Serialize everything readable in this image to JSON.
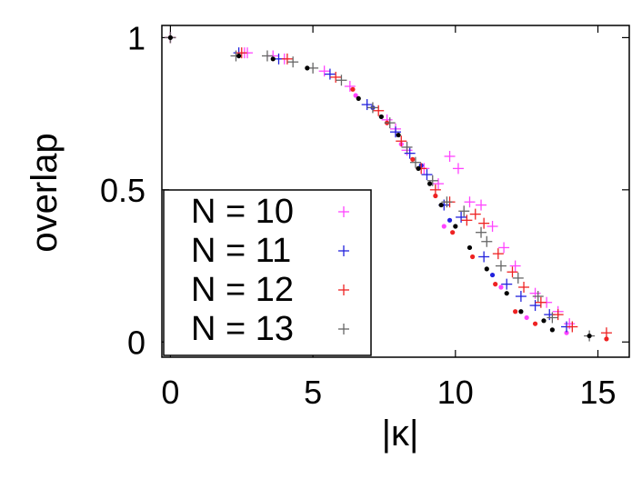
{
  "chart_data": {
    "type": "scatter",
    "xlabel": "|κ|",
    "ylabel": "overlap",
    "xlim": [
      -0.3,
      16.1
    ],
    "ylim": [
      -0.05,
      1.04
    ],
    "xticks": [
      "0",
      "5",
      "10",
      "15"
    ],
    "yticks": [
      "0",
      "0.5",
      "1"
    ],
    "grid": false,
    "legend": {
      "placement": "bottom-left",
      "entries": [
        "N = 10",
        "N = 11",
        "N = 12",
        "N = 13"
      ]
    },
    "colors": {
      "N10": "#ff44ff",
      "N11": "#2222dd",
      "N12": "#ee2222",
      "N13": "#000000",
      "N13_cross": "#666666"
    },
    "series": [
      {
        "name": "N = 10",
        "crosses": [
          [
            0,
            1.0
          ],
          [
            2.6,
            0.95
          ],
          [
            2.7,
            0.95
          ],
          [
            3.6,
            0.94
          ],
          [
            4.0,
            0.93
          ],
          [
            5.4,
            0.89
          ],
          [
            6.3,
            0.84
          ],
          [
            7.6,
            0.73
          ],
          [
            7.9,
            0.7
          ],
          [
            8.3,
            0.63
          ],
          [
            8.9,
            0.57
          ],
          [
            9.4,
            0.52
          ],
          [
            9.8,
            0.61
          ],
          [
            10.1,
            0.57
          ],
          [
            10.5,
            0.46
          ],
          [
            10.9,
            0.45
          ],
          [
            11.3,
            0.38
          ],
          [
            11.7,
            0.31
          ],
          [
            12.1,
            0.25
          ],
          [
            12.8,
            0.16
          ],
          [
            13.2,
            0.13
          ],
          [
            13.6,
            0.1
          ],
          [
            14.0,
            0.06
          ]
        ],
        "dots": [
          [
            6.5,
            0.81
          ],
          [
            8.1,
            0.65
          ],
          [
            9.6,
            0.38
          ],
          [
            11.6,
            0.18
          ],
          [
            12.5,
            0.08
          ],
          [
            13.9,
            0.03
          ]
        ]
      },
      {
        "name": "N = 11",
        "crosses": [
          [
            0,
            1.0
          ],
          [
            2.4,
            0.95
          ],
          [
            3.8,
            0.93
          ],
          [
            5.6,
            0.88
          ],
          [
            6.9,
            0.78
          ],
          [
            7.9,
            0.69
          ],
          [
            8.4,
            0.62
          ],
          [
            9.0,
            0.55
          ],
          [
            9.6,
            0.45
          ],
          [
            10.2,
            0.41
          ],
          [
            11.0,
            0.28
          ],
          [
            11.8,
            0.19
          ],
          [
            12.3,
            0.15
          ],
          [
            12.8,
            0.12
          ],
          [
            13.3,
            0.09
          ],
          [
            13.9,
            0.05
          ]
        ],
        "dots": [
          [
            7.1,
            0.77
          ],
          [
            8.8,
            0.58
          ],
          [
            9.8,
            0.4
          ],
          [
            11.3,
            0.22
          ]
        ]
      },
      {
        "name": "N = 12",
        "crosses": [
          [
            0,
            1.0
          ],
          [
            2.5,
            0.95
          ],
          [
            4.1,
            0.93
          ],
          [
            5.8,
            0.87
          ],
          [
            7.3,
            0.76
          ],
          [
            8.1,
            0.66
          ],
          [
            8.8,
            0.57
          ],
          [
            9.3,
            0.5
          ],
          [
            9.8,
            0.46
          ],
          [
            10.4,
            0.4
          ],
          [
            10.7,
            0.42
          ],
          [
            11.0,
            0.39
          ],
          [
            11.5,
            0.29
          ],
          [
            12.0,
            0.23
          ],
          [
            12.4,
            0.18
          ],
          [
            13.0,
            0.13
          ],
          [
            13.6,
            0.09
          ],
          [
            14.1,
            0.05
          ],
          [
            15.3,
            0.03
          ]
        ],
        "dots": [
          [
            6.4,
            0.83
          ],
          [
            7.6,
            0.72
          ],
          [
            8.5,
            0.6
          ],
          [
            9.3,
            0.48
          ],
          [
            9.9,
            0.36
          ],
          [
            10.6,
            0.28
          ],
          [
            11.4,
            0.19
          ],
          [
            12.1,
            0.1
          ],
          [
            12.8,
            0.06
          ],
          [
            15.3,
            0.01
          ]
        ]
      },
      {
        "name": "N = 13",
        "crosses": [
          [
            0,
            1.0
          ],
          [
            2.3,
            0.94
          ],
          [
            3.4,
            0.94
          ],
          [
            4.3,
            0.92
          ],
          [
            5.0,
            0.9
          ],
          [
            6.0,
            0.86
          ],
          [
            7.1,
            0.77
          ],
          [
            7.7,
            0.72
          ],
          [
            8.3,
            0.64
          ],
          [
            8.6,
            0.59
          ],
          [
            9.2,
            0.53
          ],
          [
            9.7,
            0.46
          ],
          [
            10.3,
            0.43
          ],
          [
            10.9,
            0.36
          ],
          [
            11.1,
            0.33
          ],
          [
            11.6,
            0.25
          ],
          [
            12.2,
            0.21
          ],
          [
            12.9,
            0.15
          ],
          [
            13.4,
            0.08
          ],
          [
            14.7,
            0.02
          ]
        ],
        "dots": [
          [
            0,
            1.0
          ],
          [
            2.4,
            0.94
          ],
          [
            3.6,
            0.93
          ],
          [
            4.8,
            0.9
          ],
          [
            6.6,
            0.8
          ],
          [
            7.4,
            0.74
          ],
          [
            8.0,
            0.68
          ],
          [
            8.7,
            0.57
          ],
          [
            9.1,
            0.52
          ],
          [
            9.5,
            0.45
          ],
          [
            10.0,
            0.38
          ],
          [
            10.5,
            0.31
          ],
          [
            11.1,
            0.24
          ],
          [
            11.8,
            0.16
          ],
          [
            12.3,
            0.1
          ],
          [
            13.1,
            0.07
          ],
          [
            13.4,
            0.04
          ],
          [
            14.7,
            0.02
          ]
        ]
      }
    ]
  }
}
